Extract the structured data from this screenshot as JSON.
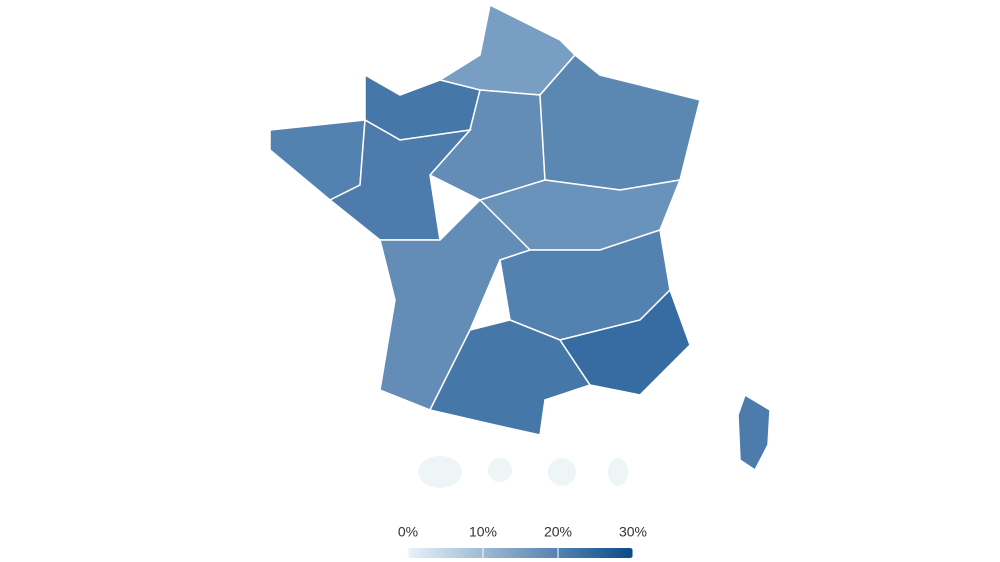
{
  "chart_data": {
    "type": "choropleth",
    "values": [
      15,
      22,
      20,
      18,
      21,
      19,
      17,
      18,
      20,
      22,
      24,
      21
    ],
    "colorscale": [
      "#e8f2fb",
      "#0a4a8a"
    ],
    "colorbar": {
      "lim": [
        0,
        30
      ],
      "ticks": [
        {
          "value": 0,
          "label": "0%"
        },
        {
          "value": 10,
          "label": "10%"
        },
        {
          "value": 20,
          "label": "20%"
        },
        {
          "value": 30,
          "label": "30%"
        }
      ]
    }
  }
}
